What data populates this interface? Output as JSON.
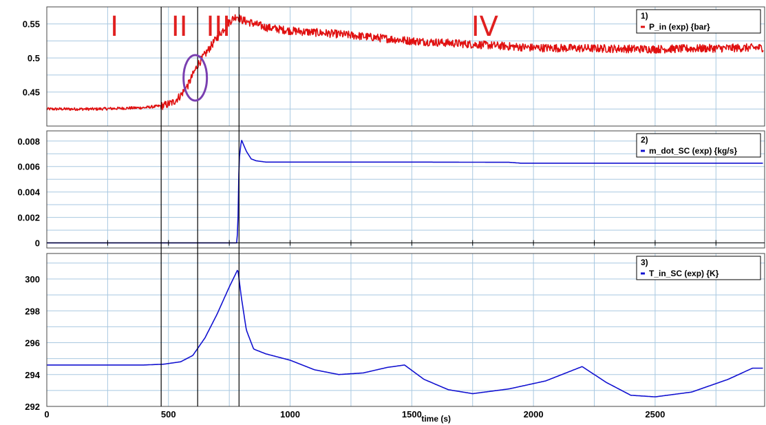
{
  "chart_data": [
    {
      "type": "line",
      "panel_number": "1)",
      "series": [
        {
          "name": "P_in  (exp) {bar}",
          "color": "#e01010",
          "x": [
            0,
            200,
            400,
            480,
            520,
            550,
            580,
            600,
            620,
            650,
            700,
            750,
            780,
            800,
            900,
            1000,
            1200,
            1500,
            2000,
            2500,
            2900
          ],
          "y": [
            0.425,
            0.425,
            0.427,
            0.43,
            0.435,
            0.445,
            0.46,
            0.475,
            0.49,
            0.505,
            0.53,
            0.553,
            0.562,
            0.556,
            0.545,
            0.54,
            0.535,
            0.525,
            0.515,
            0.513,
            0.515
          ],
          "noise": 0.006
        }
      ],
      "yticks": [
        0.45,
        0.5,
        0.55
      ],
      "ylim": [
        0.4,
        0.575
      ],
      "phase_labels": [
        "I",
        "II",
        "III",
        "IV"
      ],
      "annotation": "ellipse"
    },
    {
      "type": "line",
      "panel_number": "2)",
      "series": [
        {
          "name": "m_dot_SC (exp) {kg/s}",
          "color": "#1010d0",
          "x": [
            0,
            780,
            785,
            790,
            800,
            820,
            840,
            860,
            900,
            1500,
            1900,
            1950,
            2900
          ],
          "y": [
            0,
            0,
            0.001,
            0.0065,
            0.0081,
            0.0072,
            0.0066,
            0.00645,
            0.00635,
            0.00635,
            0.00633,
            0.00626,
            0.00626
          ],
          "noise": 0
        }
      ],
      "yticks": [
        0,
        0.002,
        0.004,
        0.006,
        0.008
      ],
      "ylim": [
        -0.0004,
        0.0088
      ]
    },
    {
      "type": "line",
      "panel_number": "3)",
      "series": [
        {
          "name": "T_in_SC  (exp) {K}",
          "color": "#1010d0",
          "x": [
            0,
            400,
            480,
            550,
            600,
            650,
            700,
            750,
            785,
            800,
            820,
            850,
            900,
            1000,
            1100,
            1200,
            1300,
            1400,
            1470,
            1550,
            1650,
            1750,
            1900,
            2050,
            2200,
            2300,
            2400,
            2500,
            2650,
            2800,
            2900
          ],
          "y": [
            294.6,
            294.6,
            294.65,
            294.8,
            295.2,
            296.3,
            297.8,
            299.5,
            300.6,
            298.8,
            296.8,
            295.6,
            295.3,
            294.9,
            294.3,
            294.0,
            294.1,
            294.45,
            294.6,
            293.7,
            293.05,
            292.8,
            293.1,
            293.6,
            294.5,
            293.5,
            292.7,
            292.6,
            292.9,
            293.7,
            294.4
          ]
        }
      ],
      "yticks": [
        292,
        294,
        296,
        298,
        300
      ],
      "ylim": [
        292,
        301.6
      ]
    }
  ],
  "x_axis": {
    "label": "time (s)",
    "xlim": [
      0,
      2950
    ],
    "ticks": [
      0,
      500,
      1000,
      1500,
      2000,
      2500
    ]
  },
  "phase_boundaries": [
    470,
    620,
    790
  ]
}
